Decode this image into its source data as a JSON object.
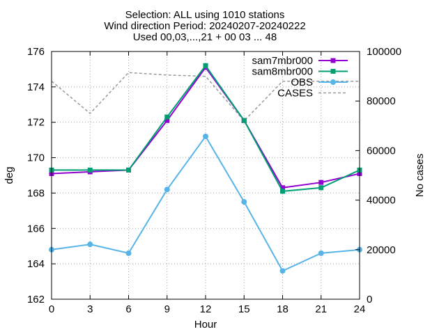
{
  "chart_data": {
    "type": "line",
    "title_lines": [
      "Selection: ALL using  1010 stations",
      "Wind direction   Period: 20240207-20240222",
      "Used 00,03,...,21 + 00 03 ... 48"
    ],
    "xlabel": "Hour",
    "ylabel": "deg",
    "y2label": "No cases",
    "x": [
      0,
      3,
      6,
      9,
      12,
      15,
      18,
      21,
      24
    ],
    "xlim": [
      0,
      24
    ],
    "ylim": [
      162,
      176
    ],
    "y2lim": [
      0,
      100000
    ],
    "x_ticks": [
      "0",
      "3",
      "6",
      "9",
      "12",
      "15",
      "18",
      "21",
      "24"
    ],
    "y_ticks": [
      "162",
      "164",
      "166",
      "168",
      "170",
      "172",
      "174",
      "176"
    ],
    "y2_ticks": [
      "0",
      "20000",
      "40000",
      "60000",
      "80000",
      "100000"
    ],
    "grid": true,
    "legend_position": "top-right",
    "series": [
      {
        "name": "sam7mbr000",
        "axis": "y",
        "color": "#9400d3",
        "style": "solid",
        "marker": "square",
        "values": [
          169.1,
          169.2,
          169.3,
          172.1,
          175.1,
          172.1,
          168.3,
          168.6,
          169.1
        ]
      },
      {
        "name": "sam8mbr000",
        "axis": "y",
        "color": "#009e73",
        "style": "solid",
        "marker": "square",
        "values": [
          169.3,
          169.3,
          169.3,
          172.3,
          175.2,
          172.1,
          168.1,
          168.3,
          169.3
        ]
      },
      {
        "name": "OBS",
        "axis": "y",
        "color": "#56b4e9",
        "style": "solid",
        "marker": "circle",
        "values": [
          164.8,
          165.1,
          164.6,
          168.2,
          171.2,
          167.5,
          163.6,
          164.6,
          164.8
        ]
      },
      {
        "name": "CASES",
        "axis": "y2",
        "color": "#999999",
        "style": "dashed",
        "marker": "none",
        "values": [
          88000,
          75000,
          91500,
          90500,
          90000,
          72000,
          88000,
          88000,
          88000
        ]
      }
    ]
  }
}
